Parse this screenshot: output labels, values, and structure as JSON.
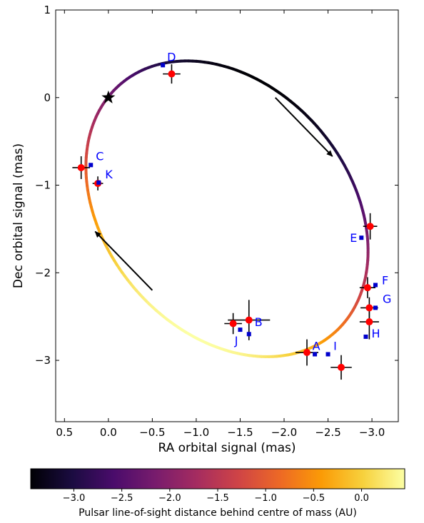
{
  "chart_data": {
    "type": "scatter",
    "xlabel": "RA orbital signal (mas)",
    "ylabel": "Dec orbital signal (mas)",
    "xlim": [
      0.6,
      -3.3
    ],
    "ylim": [
      -3.7,
      1.0
    ],
    "x_ticks": [
      0.5,
      0.0,
      -0.5,
      -1.0,
      -1.5,
      -2.0,
      -2.5,
      -3.0
    ],
    "x_tick_labels": [
      "0.5",
      "0.0",
      "−0.5",
      "−1.0",
      "−1.5",
      "−2.0",
      "−2.5",
      "−3.0"
    ],
    "y_ticks": [
      1,
      0,
      -1,
      -2,
      -3
    ],
    "y_tick_labels": [
      "1",
      "0",
      "−1",
      "−2",
      "−3"
    ],
    "grid": false,
    "center_of_mass": {
      "x": 0.0,
      "y": 0.0
    },
    "orbit": {
      "center": [
        -1.35,
        -1.27
      ],
      "semi_axes": [
        1.87,
        1.39
      ],
      "rotation_deg": 50
    },
    "measured_points": [
      {
        "x": -0.72,
        "y": 0.27,
        "xerr": 0.1,
        "yerr": 0.11
      },
      {
        "x": 0.31,
        "y": -0.8,
        "xerr": 0.1,
        "yerr": 0.13
      },
      {
        "x": 0.12,
        "y": -0.98,
        "xerr": 0.06,
        "yerr": 0.08
      },
      {
        "x": -2.98,
        "y": -1.47,
        "xerr": 0.08,
        "yerr": 0.15
      },
      {
        "x": -2.95,
        "y": -2.17,
        "xerr": 0.09,
        "yerr": 0.12
      },
      {
        "x": -2.97,
        "y": -2.4,
        "xerr": 0.1,
        "yerr": 0.12
      },
      {
        "x": -2.97,
        "y": -2.56,
        "xerr": 0.11,
        "yerr": 0.2
      },
      {
        "x": -1.42,
        "y": -2.58,
        "xerr": 0.1,
        "yerr": 0.12
      },
      {
        "x": -1.6,
        "y": -2.54,
        "xerr": 0.24,
        "yerr": 0.23
      },
      {
        "x": -2.26,
        "y": -2.91,
        "xerr": 0.13,
        "yerr": 0.15
      },
      {
        "x": -2.65,
        "y": -3.08,
        "xerr": 0.12,
        "yerr": 0.14
      }
    ],
    "model_points": [
      {
        "label": "D",
        "x": -0.62,
        "y": 0.37
      },
      {
        "label": "C",
        "x": 0.2,
        "y": -0.77
      },
      {
        "label": "K",
        "x": 0.11,
        "y": -0.97
      },
      {
        "label": "E",
        "x": -2.88,
        "y": -1.6
      },
      {
        "label": "F",
        "x": -3.04,
        "y": -2.14
      },
      {
        "label": "G",
        "x": -3.04,
        "y": -2.4
      },
      {
        "label": "H",
        "x": -2.93,
        "y": -2.73
      },
      {
        "label": "B",
        "x": -1.6,
        "y": -2.7
      },
      {
        "label": "J",
        "x": -1.5,
        "y": -2.65
      },
      {
        "label": "A",
        "x": -2.35,
        "y": -2.93
      },
      {
        "label": "I",
        "x": -2.5,
        "y": -2.93
      }
    ],
    "arrows": [
      {
        "from": [
          -1.9,
          -0.0
        ],
        "to": [
          -2.55,
          -0.67
        ]
      },
      {
        "from": [
          -0.5,
          -2.2
        ],
        "to": [
          0.15,
          -1.53
        ]
      }
    ],
    "colorbar": {
      "label": "Pulsar line-of-sight distance behind centre of mass (AU)",
      "range": [
        -3.45,
        0.45
      ],
      "ticks": [
        -3.0,
        -2.5,
        -2.0,
        -1.5,
        -1.0,
        -0.5,
        0.0
      ],
      "tick_labels": [
        "−3.0",
        "−2.5",
        "−2.0",
        "−1.5",
        "−1.0",
        "−0.5",
        "0.0"
      ],
      "colormap": "inferno",
      "stops": [
        "#000004",
        "#1b0c41",
        "#4a0c6b",
        "#781c6d",
        "#a52c60",
        "#cf4446",
        "#ed6925",
        "#fb9b06",
        "#f7d13d",
        "#fcffa4"
      ]
    },
    "colors": {
      "measured_marker": "#ff0000",
      "model_marker": "#0000cc",
      "label_text": "#0000ff",
      "errorbar": "#000000"
    }
  }
}
